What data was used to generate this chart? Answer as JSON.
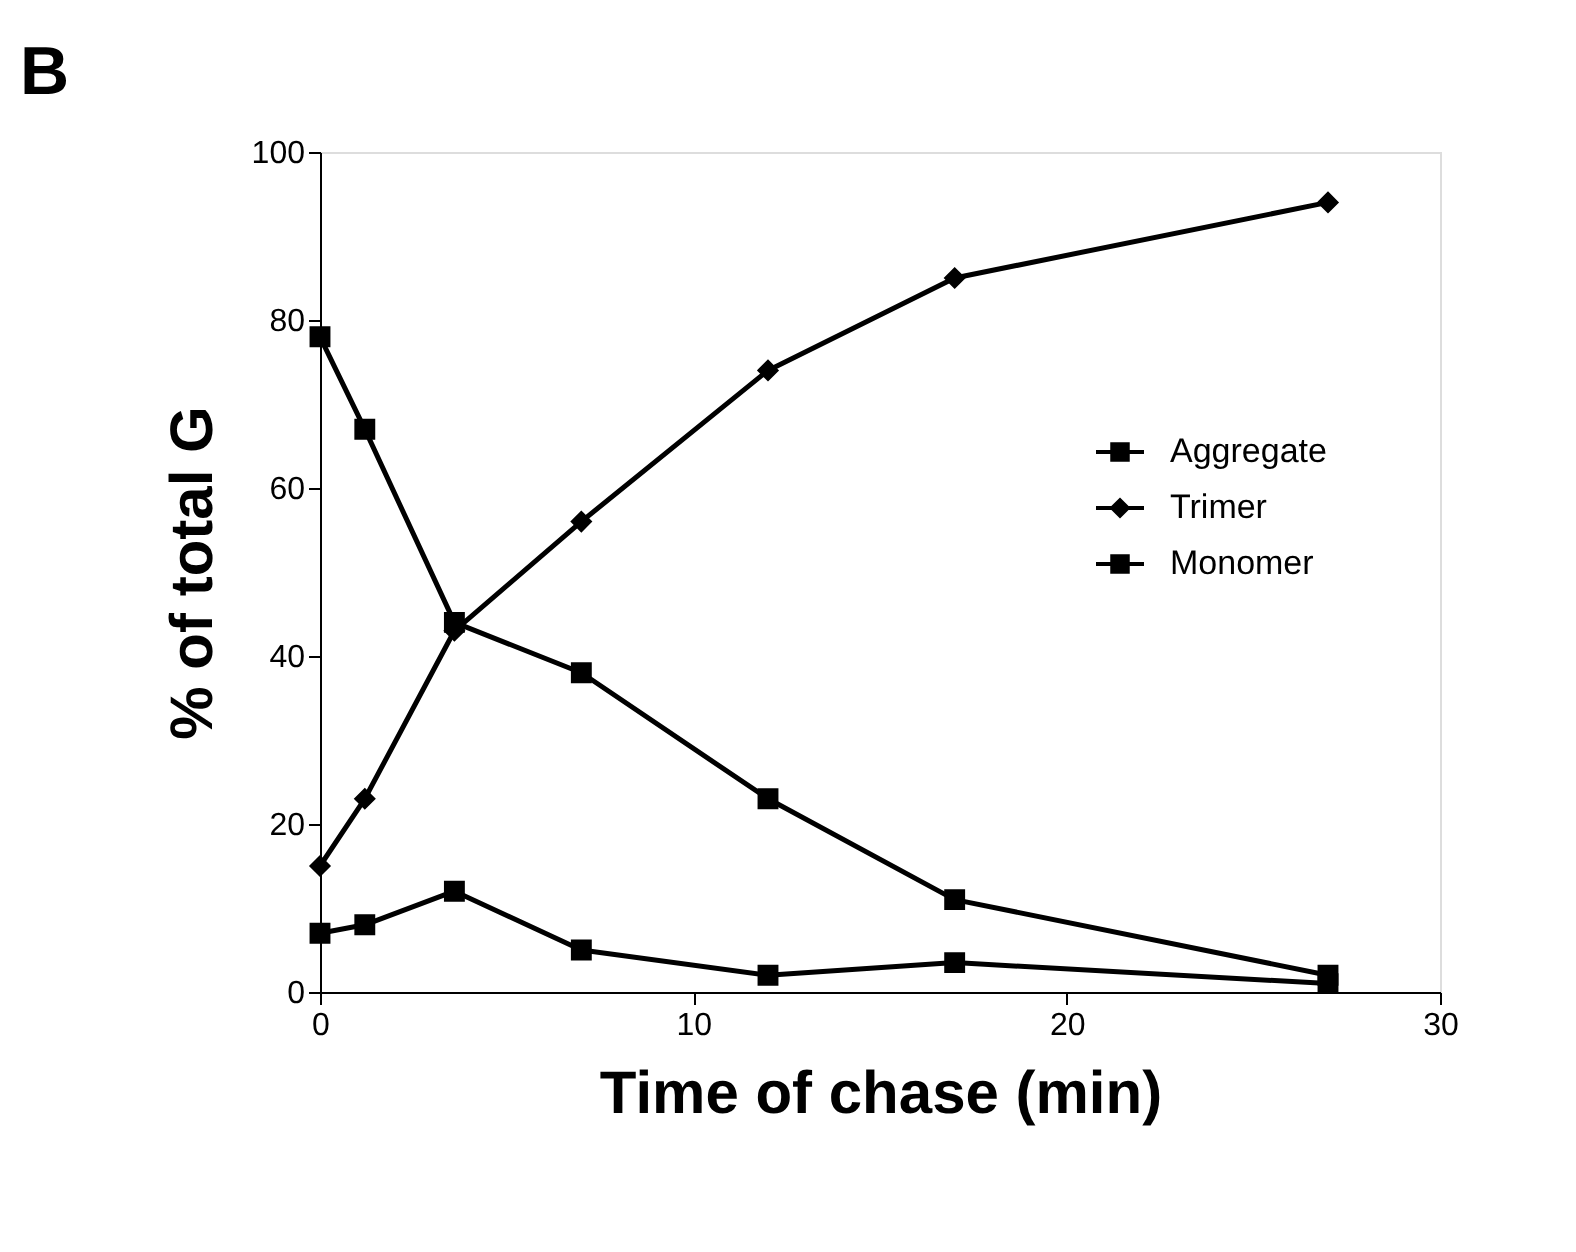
{
  "chart_data": {
    "type": "line",
    "title": "B",
    "xlabel": "Time of chase (min)",
    "ylabel": "% of total G",
    "x": [
      0,
      1.2,
      3.6,
      7,
      12,
      17,
      27
    ],
    "series": [
      {
        "name": "Aggregate",
        "color": "#000000",
        "marker": "square",
        "values": [
          7,
          8,
          12,
          5,
          2,
          3.5,
          1
        ]
      },
      {
        "name": "Trimer",
        "color": "#000000",
        "marker": "diamond",
        "values": [
          15,
          23,
          43,
          56,
          74,
          85,
          94
        ]
      },
      {
        "name": "Monomer",
        "color": "#000000",
        "marker": "square",
        "values": [
          78,
          67,
          44,
          38,
          23,
          11,
          2
        ]
      }
    ],
    "xlim": [
      0,
      30
    ],
    "xticks": [
      0,
      10,
      20,
      30
    ],
    "ylim": [
      0,
      100
    ],
    "yticks": [
      0,
      20,
      40,
      60,
      80,
      100
    ],
    "grid": false,
    "legend": "right",
    "line_style": "solid"
  }
}
